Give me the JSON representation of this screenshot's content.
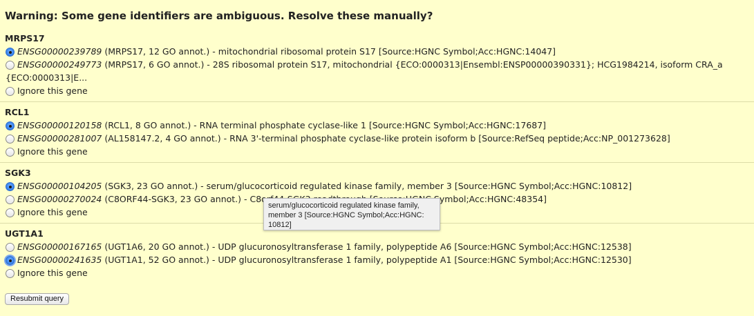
{
  "title": "Warning: Some gene identifiers are ambiguous. Resolve these manually?",
  "groups": [
    {
      "gene": "MRPS17",
      "options": [
        {
          "id": "ENSG00000239789",
          "text": " (MRPS17, 12 GO annot.) - mitochondrial ribosomal protein S17 [Source:HGNC Symbol;Acc:HGNC:14047]",
          "checked": true
        },
        {
          "id": "ENSG00000249773",
          "text": " (MRPS17, 6 GO annot.) - 28S ribosomal protein S17, mitochondrial {ECO:0000313|Ensembl:ENSP00000390331}; HCG1984214, isoform CRA_a",
          "continuation": "{ECO:0000313|E...",
          "checked": false
        }
      ],
      "ignore_label": "Ignore this gene"
    },
    {
      "gene": "RCL1",
      "options": [
        {
          "id": "ENSG00000120158",
          "text": " (RCL1, 8 GO annot.) - RNA terminal phosphate cyclase-like 1 [Source:HGNC Symbol;Acc:HGNC:17687]",
          "checked": true
        },
        {
          "id": "ENSG00000281007",
          "text": " (AL158147.2, 4 GO annot.) - RNA 3'-terminal phosphate cyclase-like protein isoform b [Source:RefSeq peptide;Acc:NP_001273628]",
          "checked": false
        }
      ],
      "ignore_label": "Ignore this gene"
    },
    {
      "gene": "SGK3",
      "options": [
        {
          "id": "ENSG00000104205",
          "text": " (SGK3, 23 GO annot.) - serum/glucocorticoid regulated kinase family, member 3 [Source:HGNC Symbol;Acc:HGNC:10812]",
          "checked": true
        },
        {
          "id": "ENSG00000270024",
          "text": " (C8ORF44-SGK3, 23 GO annot.) - C8orf44-SGK3 readthrough [Source:HGNC Symbol;Acc:HGNC:48354]",
          "checked": false
        }
      ],
      "ignore_label": "Ignore this gene"
    },
    {
      "gene": "UGT1A1",
      "options": [
        {
          "id": "ENSG00000167165",
          "text": " (UGT1A6, 20 GO annot.) - UDP glucuronosyltransferase 1 family, polypeptide A6 [Source:HGNC Symbol;Acc:HGNC:12538]",
          "checked": false
        },
        {
          "id": "ENSG00000241635",
          "text": " (UGT1A1, 52 GO annot.) - UDP glucuronosyltransferase 1 family, polypeptide A1 [Source:HGNC Symbol;Acc:HGNC:12530]",
          "checked": true
        }
      ],
      "ignore_label": "Ignore this gene"
    }
  ],
  "tooltip": {
    "line1": "serum/glucocorticoid regulated kinase family,",
    "line2": "member 3 [Source:HGNC Symbol;Acc:HGNC:",
    "line3": "10812]"
  },
  "resubmit_label": "Resubmit query"
}
